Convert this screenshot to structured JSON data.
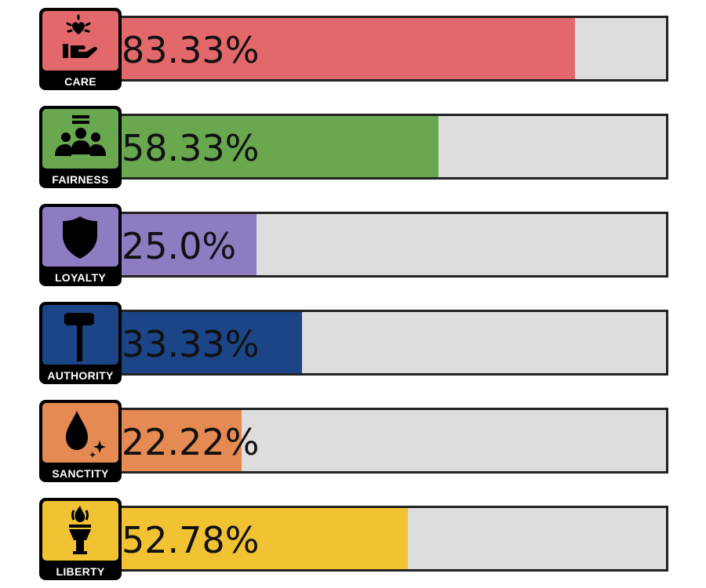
{
  "chart_data": {
    "type": "bar",
    "orientation": "horizontal",
    "xlim": [
      0,
      100
    ],
    "categories": [
      "CARE",
      "FAIRNESS",
      "LOYALTY",
      "AUTHORITY",
      "SANCTITY",
      "LIBERTY"
    ],
    "values": [
      83.33,
      58.33,
      25.0,
      33.33,
      22.22,
      52.78
    ],
    "value_labels": [
      "83.33%",
      "58.33%",
      "25.0%",
      "33.33%",
      "22.22%",
      "52.78%"
    ],
    "colors": [
      "#e3686b",
      "#69a84f",
      "#8e7cc3",
      "#1c4587",
      "#e48a52",
      "#f1c232"
    ],
    "icons": [
      "heart-hand-icon",
      "group-people-icon",
      "shield-icon",
      "gavel-icon",
      "droplet-sparkle-icon",
      "torch-icon"
    ],
    "track_color": "#dddddd",
    "grid": false,
    "legend": "none"
  }
}
